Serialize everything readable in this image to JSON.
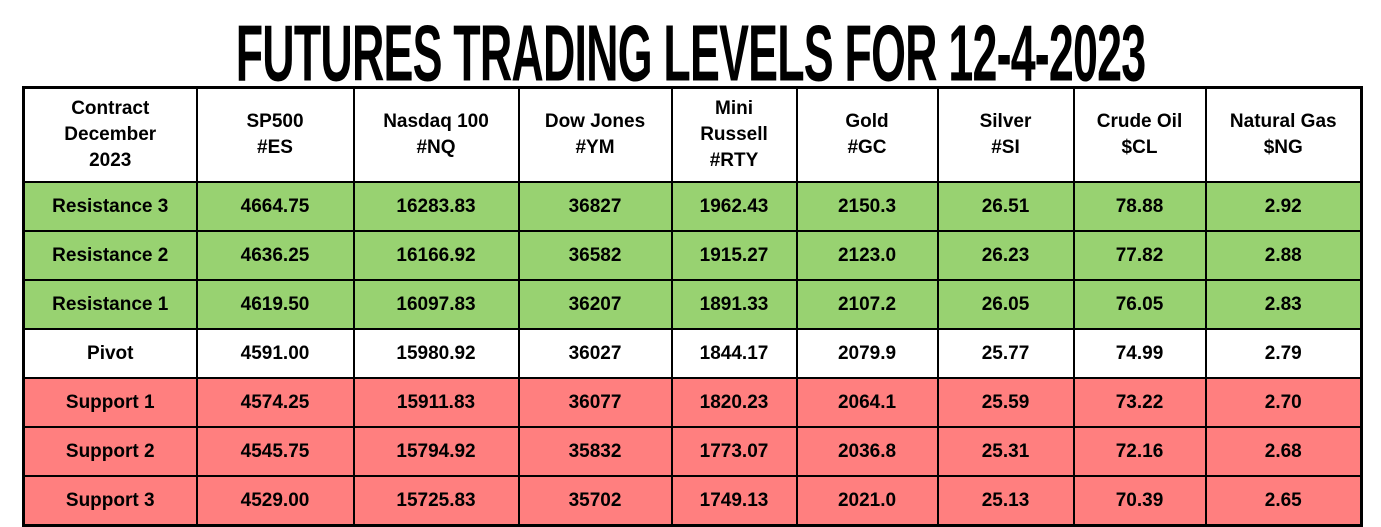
{
  "chart_data": {
    "type": "table",
    "title": "FUTURES TRADING LEVELS FOR 12-4-2023",
    "columns": [
      {
        "label": "Contract\nDecember\n2023"
      },
      {
        "label": "SP500\n#ES"
      },
      {
        "label": "Nasdaq 100\n#NQ"
      },
      {
        "label": "Dow Jones\n#YM"
      },
      {
        "label": "Mini\nRussell\n#RTY"
      },
      {
        "label": "Gold\n#GC"
      },
      {
        "label": "Silver\n#SI"
      },
      {
        "label": "Crude Oil\n$CL"
      },
      {
        "label": "Natural Gas\n$NG"
      }
    ],
    "rows": [
      {
        "label": "Resistance 3",
        "zone": "resistance",
        "values": [
          "4664.75",
          "16283.83",
          "36827",
          "1962.43",
          "2150.3",
          "26.51",
          "78.88",
          "2.92"
        ]
      },
      {
        "label": "Resistance 2",
        "zone": "resistance",
        "values": [
          "4636.25",
          "16166.92",
          "36582",
          "1915.27",
          "2123.0",
          "26.23",
          "77.82",
          "2.88"
        ]
      },
      {
        "label": "Resistance 1",
        "zone": "resistance",
        "values": [
          "4619.50",
          "16097.83",
          "36207",
          "1891.33",
          "2107.2",
          "26.05",
          "76.05",
          "2.83"
        ]
      },
      {
        "label": "Pivot",
        "zone": "pivot",
        "values": [
          "4591.00",
          "15980.92",
          "36027",
          "1844.17",
          "2079.9",
          "25.77",
          "74.99",
          "2.79"
        ]
      },
      {
        "label": "Support 1",
        "zone": "support",
        "values": [
          "4574.25",
          "15911.83",
          "36077",
          "1820.23",
          "2064.1",
          "25.59",
          "73.22",
          "2.70"
        ]
      },
      {
        "label": "Support 2",
        "zone": "support",
        "values": [
          "4545.75",
          "15794.92",
          "35832",
          "1773.07",
          "2036.8",
          "25.31",
          "72.16",
          "2.68"
        ]
      },
      {
        "label": "Support 3",
        "zone": "support",
        "values": [
          "4529.00",
          "15725.83",
          "35702",
          "1749.13",
          "2021.0",
          "25.13",
          "70.39",
          "2.65"
        ]
      }
    ]
  },
  "colors": {
    "resistance_bg": "#98d271",
    "support_bg": "#ff7f7f",
    "pivot_bg": "#ffffff",
    "border": "#000000",
    "text": "#000000"
  }
}
